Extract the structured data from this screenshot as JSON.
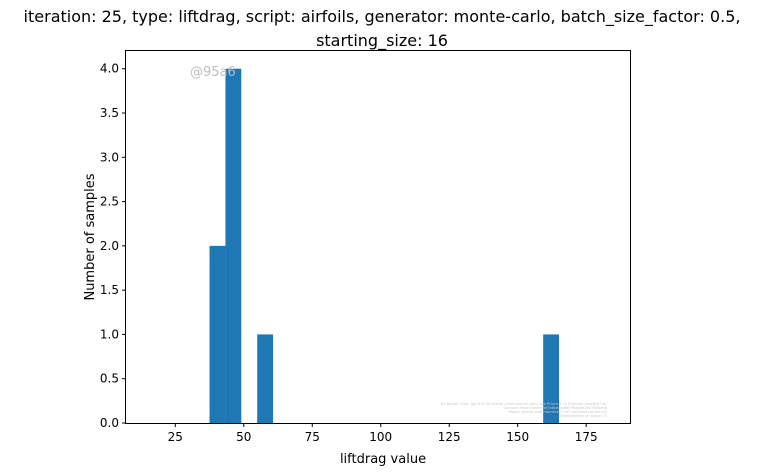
{
  "chart_data": {
    "type": "bar",
    "title_line1": "iteration: 25, type: liftdrag, script: airfoils, generator: monte-carlo, batch_size_factor: 0.5,",
    "title_line2": "starting_size: 16",
    "xlabel": "liftdrag value",
    "ylabel": "Number of samples",
    "xlim": [
      7,
      191
    ],
    "ylim": [
      0,
      4.2
    ],
    "x_ticks": [
      25,
      50,
      75,
      100,
      125,
      150,
      175
    ],
    "y_ticks": [
      0.0,
      0.5,
      1.0,
      1.5,
      2.0,
      2.5,
      3.0,
      3.5,
      4.0
    ],
    "bins": [
      {
        "start": 37.5,
        "end": 43.3,
        "count": 2
      },
      {
        "start": 43.3,
        "end": 49.1,
        "count": 4
      },
      {
        "start": 54.9,
        "end": 60.7,
        "count": 1
      },
      {
        "start": 159.3,
        "end": 165.1,
        "count": 1
      }
    ],
    "bar_color": "#1f77b4",
    "grid": false,
    "watermark": "@95a6",
    "fine_print": [
      "By Daniel Olsen (ge 6.0754 dkinsl) u tsehmemul.com; eee Prince 1 7070 temsr-rmst6isf7.st;",
      "Contact: 9ftaf7eaeeeiAe7b8sedaaf8f7f8e48a2ea7894eeb",
      "Pages: github.com.mbmkce07.9f7 (a0/Leam-airfoil.py)",
      "Ehdmkemeer on Sappr-25"
    ]
  }
}
